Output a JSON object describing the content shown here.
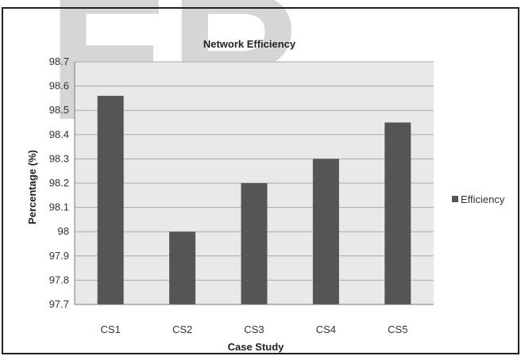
{
  "chart_data": {
    "type": "bar",
    "title": "Network Efficiency",
    "xlabel": "Case Study",
    "ylabel": "Percentage (%)",
    "categories": [
      "CS1",
      "CS2",
      "CS3",
      "CS4",
      "CS5"
    ],
    "series": [
      {
        "name": "Efficiency",
        "values": [
          98.56,
          98.0,
          98.2,
          98.3,
          98.45
        ]
      }
    ],
    "ylim": [
      97.7,
      98.7
    ],
    "yticks": [
      "97.7",
      "97.8",
      "97.9",
      "98",
      "98.1",
      "98.2",
      "98.3",
      "98.4",
      "98.5",
      "98.6",
      "98.7"
    ],
    "grid": true,
    "legend": "right"
  },
  "watermark_text": "ER",
  "colors": {
    "bar": "#555555",
    "plot_bg": "#e9e9e9",
    "grid": "#a9a9a9",
    "watermark": "#d6d6d6"
  }
}
